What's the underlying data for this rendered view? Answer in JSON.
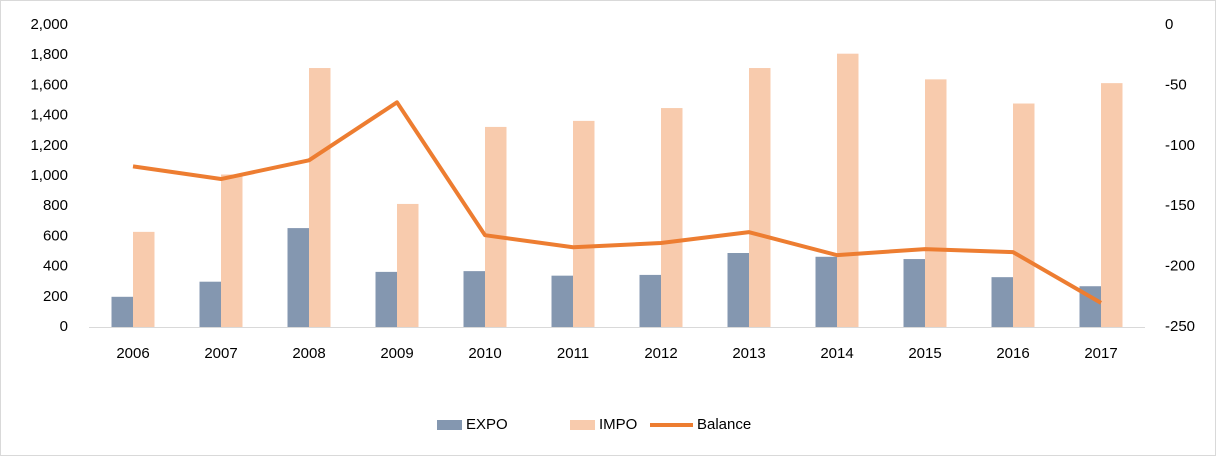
{
  "chart_data": {
    "type": "bar-line",
    "categories": [
      "2006",
      "2007",
      "2008",
      "2009",
      "2010",
      "2011",
      "2012",
      "2013",
      "2014",
      "2015",
      "2016",
      "2017"
    ],
    "series": [
      {
        "name": "EXPO",
        "type": "bar",
        "color": "#8497b0",
        "values": [
          200,
          300,
          655,
          365,
          370,
          340,
          345,
          490,
          465,
          450,
          330,
          270
        ]
      },
      {
        "name": "IMPO",
        "type": "bar",
        "color": "#f8cbad",
        "values": [
          630,
          1010,
          1715,
          815,
          1325,
          1365,
          1450,
          1715,
          1810,
          1640,
          1480,
          1615
        ]
      },
      {
        "name": "Balance",
        "type": "line",
        "axis": "y2",
        "color": "#ed7d31",
        "values": [
          -117,
          -127.5,
          -112,
          -64,
          -174,
          -184,
          -180.5,
          -171.5,
          -190.5,
          -185.5,
          -188,
          -230
        ]
      }
    ],
    "ylim": [
      0,
      2000
    ],
    "yticks": [
      0,
      200,
      400,
      600,
      800,
      {
        "value": 1000,
        "label": "1,000"
      },
      {
        "value": 1200,
        "label": "1,200"
      },
      {
        "value": 1400,
        "label": "1,400"
      },
      {
        "value": 1600,
        "label": "1,600"
      },
      {
        "value": 1800,
        "label": "1,800"
      },
      {
        "value": 2000,
        "label": "2,000"
      }
    ],
    "y2lim": [
      -250,
      0
    ],
    "y2ticks": [
      0,
      -50,
      -100,
      -150,
      -200,
      -250
    ],
    "grid": false,
    "legend": "bottom"
  }
}
